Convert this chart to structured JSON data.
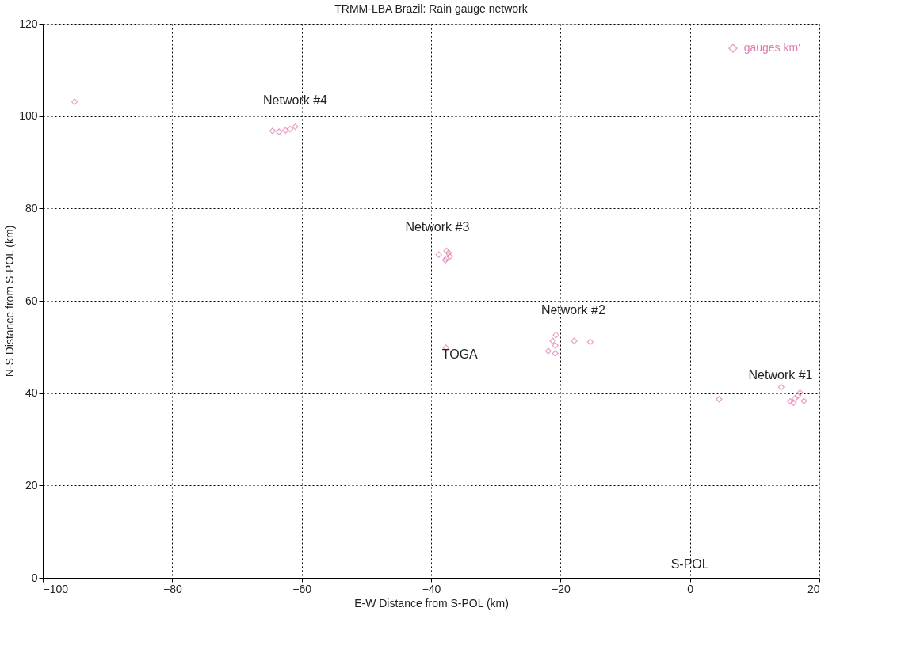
{
  "chart_data": {
    "type": "scatter",
    "title": "TRMM-LBA Brazil:  Rain gauge network",
    "xlabel": "E-W Distance from S-POL (km)",
    "ylabel": "N-S Distance from S-POL (km)",
    "xlim": [
      -100,
      20
    ],
    "ylim": [
      0,
      120
    ],
    "xticks": [
      -100,
      -80,
      -60,
      -40,
      -20,
      0,
      20
    ],
    "yticks": [
      0,
      20,
      40,
      60,
      80,
      100,
      120
    ],
    "grid": true,
    "legend": "top right",
    "marker": "diamond",
    "series": [
      {
        "name": "'gauges km'",
        "color": "#e07ab0",
        "x": [
          -95.1,
          -64.5,
          -63.5,
          -62.5,
          -61.8,
          -61.0,
          -38.8,
          -37.6,
          -37.3,
          -37.6,
          -37.8,
          -37.1,
          -37.7,
          -20.7,
          -17.9,
          -15.4,
          -21.9,
          -20.8,
          -20.8,
          -21.2,
          4.5,
          14.1,
          15.5,
          16.2,
          16.7,
          17.0,
          16.0,
          17.6
        ],
        "values": [
          103.1,
          96.8,
          96.6,
          96.9,
          97.2,
          97.7,
          70.0,
          70.8,
          70.4,
          69.2,
          68.8,
          69.6,
          49.8,
          52.6,
          51.3,
          51.1,
          49.1,
          50.3,
          48.6,
          51.3,
          38.7,
          41.3,
          38.2,
          38.8,
          39.5,
          40.1,
          37.9,
          38.3
        ]
      }
    ],
    "annotations": [
      "Network #4",
      "Network #3",
      "Network #2",
      "Network #1",
      "TOGA",
      "S-POL"
    ]
  }
}
